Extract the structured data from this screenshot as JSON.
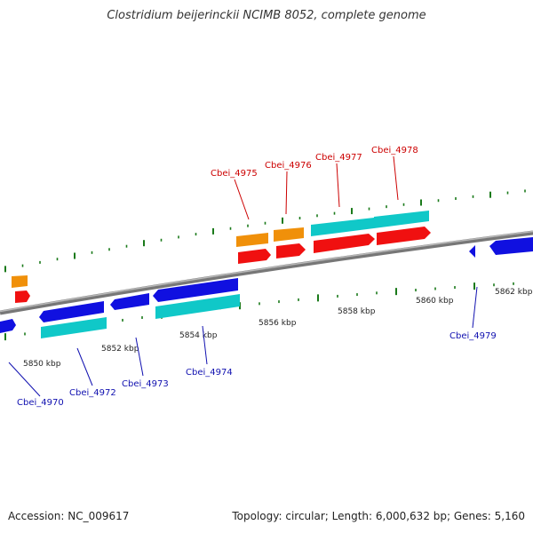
{
  "header": {
    "title": "Clostridium beijerinckii NCIMB 8052, complete genome"
  },
  "footer": {
    "accession": "Accession: NC_009617",
    "topology": "Topology: circular; Length: 6,000,632 bp; Genes: 5,160"
  },
  "colors": {
    "backbone": "#888888",
    "tick": "#1a7a1a",
    "gene_blue": "#1010e0",
    "cds_cyan": "#10c8c8",
    "gene_orange": "#f0900a",
    "cds_red": "#f01010",
    "label_red": "#cc0000",
    "label_blue": "#1010b0"
  },
  "scale_labels": [
    "5850 kbp",
    "5852 kbp",
    "5854 kbp",
    "5856 kbp",
    "5858 kbp",
    "5860 kbp",
    "5862 kbp"
  ],
  "gene_labels": {
    "reverse": [
      "Cbei_4970",
      "Cbei_4972",
      "Cbei_4973",
      "Cbei_4974",
      "Cbei_4979"
    ],
    "forward": [
      "Cbei_4975",
      "Cbei_4976",
      "Cbei_4977",
      "Cbei_4978"
    ]
  }
}
